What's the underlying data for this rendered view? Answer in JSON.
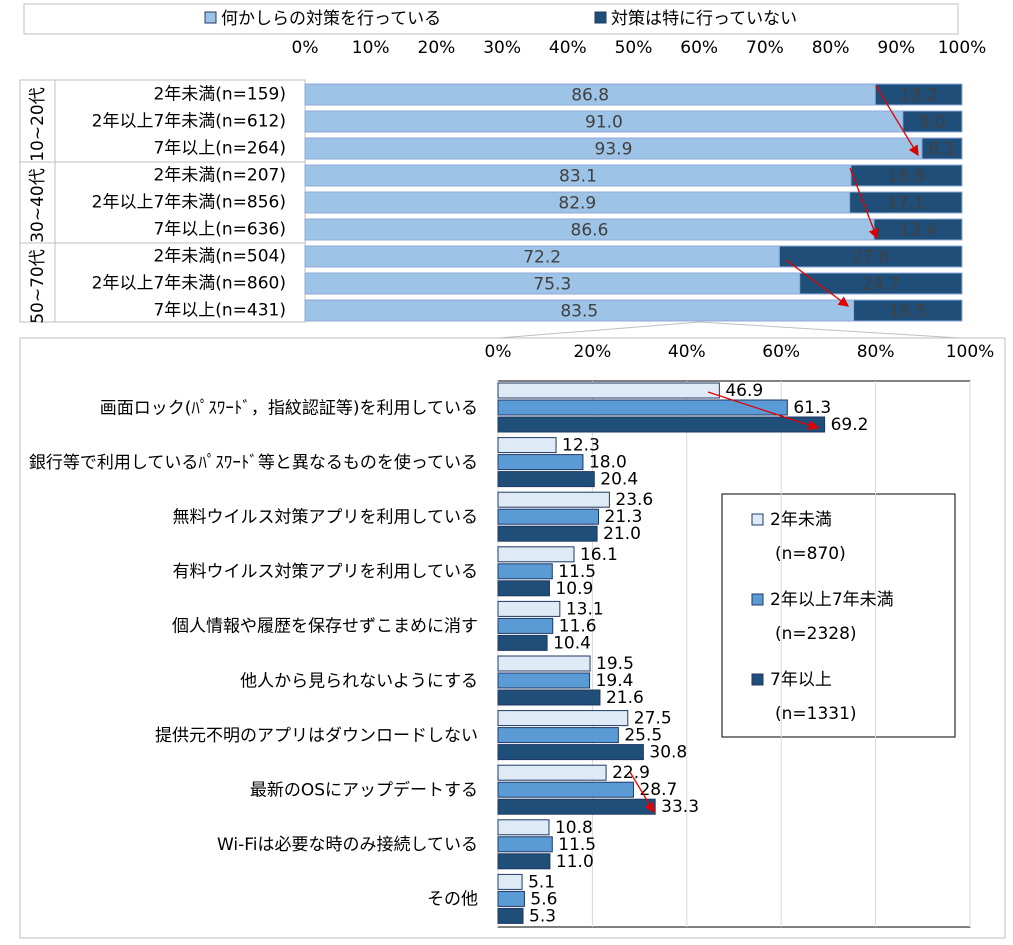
{
  "chart_data": [
    {
      "type": "stacked_bar_h",
      "categories": [
        "2年未満(n=159)",
        "2年以上7年未満(n=612)",
        "7年以上(n=264)",
        "2年未満(n=207)",
        "2年以上7年未満(n=856)",
        "7年以上(n=636)",
        "2年未満(n=504)",
        "2年以上7年未満(n=860)",
        "7年以上(n=431)"
      ],
      "group_labels": [
        "10~20代",
        "30~40代",
        "50~70代"
      ],
      "series": [
        {
          "name": "何かしらの対策を行っている",
          "color": "#9dc3e6",
          "values": [
            86.8,
            91.0,
            93.9,
            83.1,
            82.9,
            86.6,
            72.2,
            75.3,
            83.5
          ],
          "value_labels": [
            "86.8",
            "91.0",
            "93.9",
            "83.1",
            "82.9",
            "86.6",
            "72.2",
            "75.3",
            "83.5"
          ]
        },
        {
          "name": "対策は特に行っていない",
          "color": "#1f4e79",
          "values": [
            13.2,
            9.0,
            6.1,
            16.9,
            17.1,
            13.4,
            27.8,
            24.7,
            16.5
          ],
          "value_labels": [
            "13.2",
            "9.0",
            "6.1",
            "16.9",
            "17.1",
            "13.4",
            "27.8",
            "24.7",
            "16.5"
          ]
        }
      ],
      "xlim": [
        0,
        100
      ],
      "xticks": [
        {
          "value": 0,
          "label": "0%"
        },
        {
          "value": 10,
          "label": "10%"
        },
        {
          "value": 20,
          "label": "20%"
        },
        {
          "value": 30,
          "label": "30%"
        },
        {
          "value": 40,
          "label": "40%"
        },
        {
          "value": 50,
          "label": "50%"
        },
        {
          "value": 60,
          "label": "60%"
        },
        {
          "value": 70,
          "label": "70%"
        },
        {
          "value": 80,
          "label": "80%"
        },
        {
          "value": 90,
          "label": "90%"
        },
        {
          "value": 100,
          "label": "100%"
        }
      ],
      "grid": false
    },
    {
      "type": "bar_h",
      "categories": [
        "画面ロック(ﾊﾟｽﾜｰﾄﾞ，指紋認証等)を利用している",
        "銀行等で利用しているﾊﾟｽﾜｰﾄﾞ等と異なるものを使っている",
        "無料ウイルス対策アプリを利用している",
        "有料ウイルス対策アプリを利用している",
        "個人情報や履歴を保存せずこまめに消す",
        "他人から見られないようにする",
        "提供元不明のアプリはダウンロードしない",
        "最新のOSにアップデートする",
        "Wi-Fiは必要な時のみ接続している",
        "その他"
      ],
      "series": [
        {
          "name": "2年未満(n=870)",
          "color": "#deebf7",
          "values": [
            46.9,
            12.3,
            23.6,
            16.1,
            13.1,
            19.5,
            27.5,
            22.9,
            10.8,
            5.1
          ],
          "value_labels": [
            "46.9",
            "12.3",
            "23.6",
            "16.1",
            "13.1",
            "19.5",
            "27.5",
            "22.9",
            "10.8",
            "5.1"
          ]
        },
        {
          "name": "2年以上7年未満(n=2328)",
          "color": "#5b9bd5",
          "values": [
            61.3,
            18.0,
            21.3,
            11.5,
            11.6,
            19.4,
            25.5,
            28.7,
            11.5,
            5.6
          ],
          "value_labels": [
            "61.3",
            "18.0",
            "21.3",
            "11.5",
            "11.6",
            "19.4",
            "25.5",
            "28.7",
            "11.5",
            "5.6"
          ]
        },
        {
          "name": "7年以上(n=1331)",
          "color": "#1f4e79",
          "values": [
            69.2,
            20.4,
            21.0,
            10.9,
            10.4,
            21.6,
            30.8,
            33.3,
            11.0,
            5.3
          ],
          "value_labels": [
            "69.2",
            "20.4",
            "21.0",
            "10.9",
            "10.4",
            "21.6",
            "30.8",
            "33.3",
            "11.0",
            "5.3"
          ]
        }
      ],
      "xlim": [
        0,
        100
      ],
      "xticks": [
        {
          "value": 0,
          "label": "0%"
        },
        {
          "value": 20,
          "label": "20%"
        },
        {
          "value": 40,
          "label": "40%"
        },
        {
          "value": 60,
          "label": "60%"
        },
        {
          "value": 80,
          "label": "80%"
        },
        {
          "value": 100,
          "label": "100%"
        }
      ],
      "grid": true
    }
  ]
}
